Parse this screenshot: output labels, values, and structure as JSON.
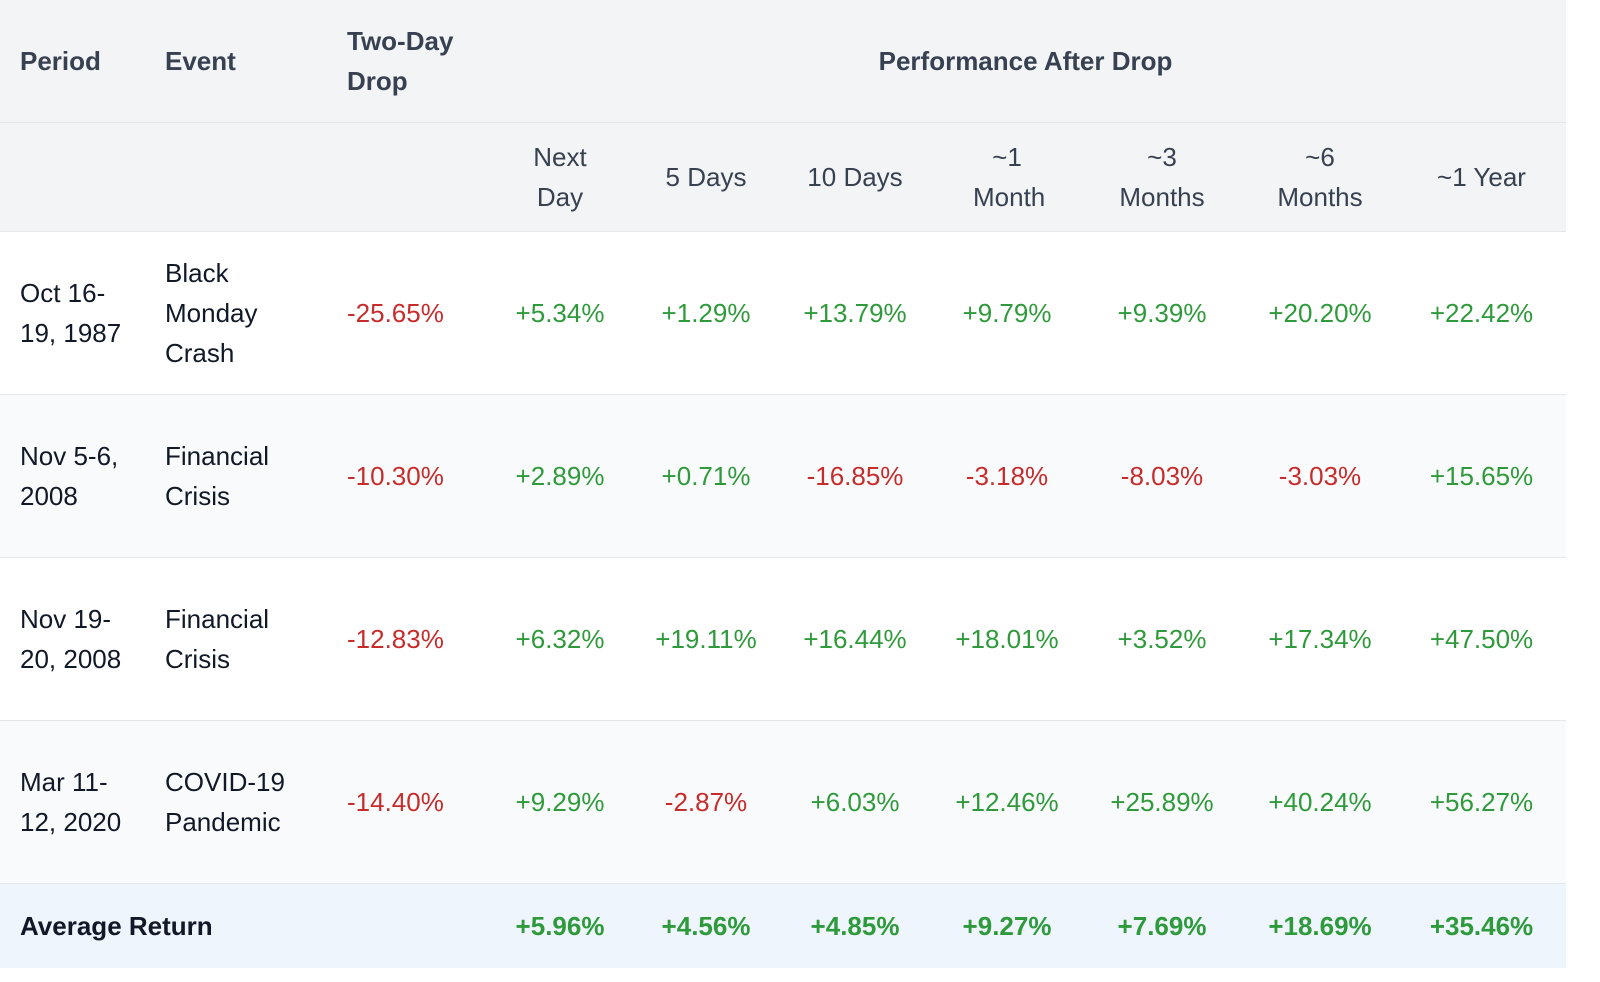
{
  "header": {
    "period": "Period",
    "event": "Event",
    "drop": "Two-Day Drop",
    "performance": "Performance After Drop",
    "subcols": [
      "Next Day",
      "5 Days",
      "10 Days",
      "~1 Month",
      "~3 Months",
      "~6 Months",
      "~1 Year"
    ]
  },
  "rows": [
    {
      "period": "Oct 16-19, 1987",
      "event": "Black Monday Crash",
      "drop": "-25.65%",
      "values": [
        "+5.34%",
        "+1.29%",
        "+13.79%",
        "+9.79%",
        "+9.39%",
        "+20.20%",
        "+22.42%"
      ]
    },
    {
      "period": "Nov 5-6, 2008",
      "event": "Financial Crisis",
      "drop": "-10.30%",
      "values": [
        "+2.89%",
        "+0.71%",
        "-16.85%",
        "-3.18%",
        "-8.03%",
        "-3.03%",
        "+15.65%"
      ]
    },
    {
      "period": "Nov 19-20, 2008",
      "event": "Financial Crisis",
      "drop": "-12.83%",
      "values": [
        "+6.32%",
        "+19.11%",
        "+16.44%",
        "+18.01%",
        "+3.52%",
        "+17.34%",
        "+47.50%"
      ]
    },
    {
      "period": "Mar 11-12, 2020",
      "event": "COVID-19 Pandemic",
      "drop": "-14.40%",
      "values": [
        "+9.29%",
        "-2.87%",
        "+6.03%",
        "+12.46%",
        "+25.89%",
        "+40.24%",
        "+56.27%"
      ]
    }
  ],
  "average": {
    "label": "Average Return",
    "values": [
      "+5.96%",
      "+4.56%",
      "+4.85%",
      "+9.27%",
      "+7.69%",
      "+18.69%",
      "+35.46%"
    ]
  },
  "colors": {
    "positive": "#2f9a3b",
    "negative": "#c72c2c"
  }
}
